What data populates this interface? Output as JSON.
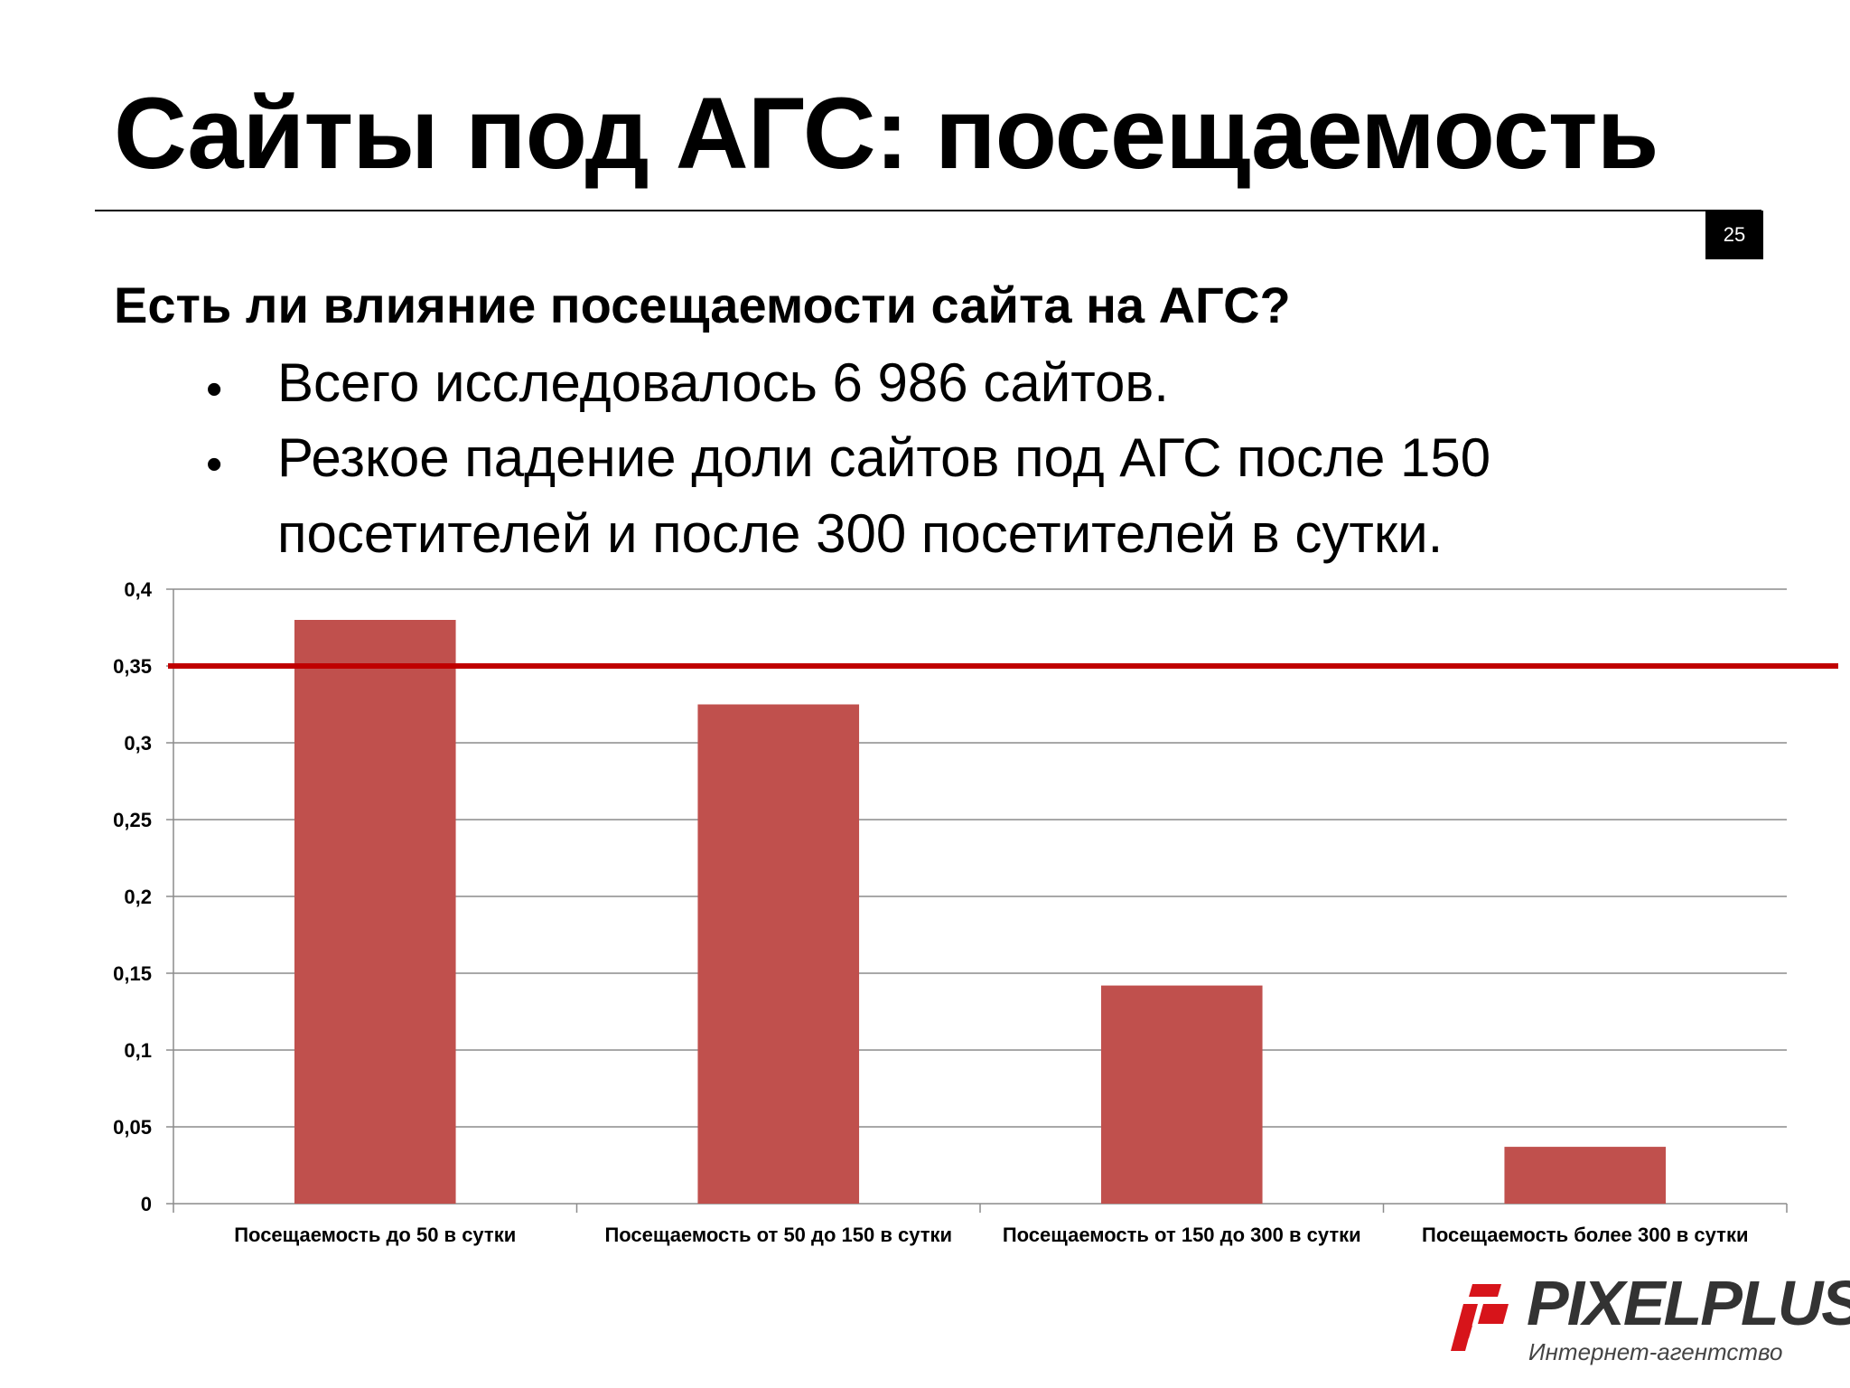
{
  "slide": {
    "title": "Сайты под АГС: посещаемость",
    "page_number": "25",
    "question": "Есть ли влияние посещаемости сайта на АГС?",
    "bullets": [
      "Всего исследовалось 6 986 сайтов.",
      "Резкое падение доли сайтов под АГС после 150",
      "посетителей и после 300 посетителей в сутки."
    ],
    "bullet_symbol": "•"
  },
  "logo": {
    "name": "PIXELPLUS",
    "subtitle": "Интернет-агентство",
    "accent_color": "#d7141a"
  },
  "chart_data": {
    "type": "bar",
    "categories": [
      "Посещаемость до 50 в сутки",
      "Посещаемость от 50 до 150 в сутки",
      "Посещаемость от 150 до 300 в сутки",
      "Посещаемость более 300 в сутки"
    ],
    "values": [
      0.38,
      0.325,
      0.142,
      0.037
    ],
    "ylim": [
      0,
      0.4
    ],
    "yticks": [
      0,
      0.05,
      0.1,
      0.15,
      0.2,
      0.25,
      0.3,
      0.35,
      0.4
    ],
    "ytick_labels": [
      "0",
      "0,05",
      "0,1",
      "0,15",
      "0,2",
      "0,25",
      "0,3",
      "0,35",
      "0,4"
    ],
    "reference_line": 0.35,
    "grid": true,
    "bar_color": "#c0504d",
    "reference_line_color": "#c00000"
  }
}
